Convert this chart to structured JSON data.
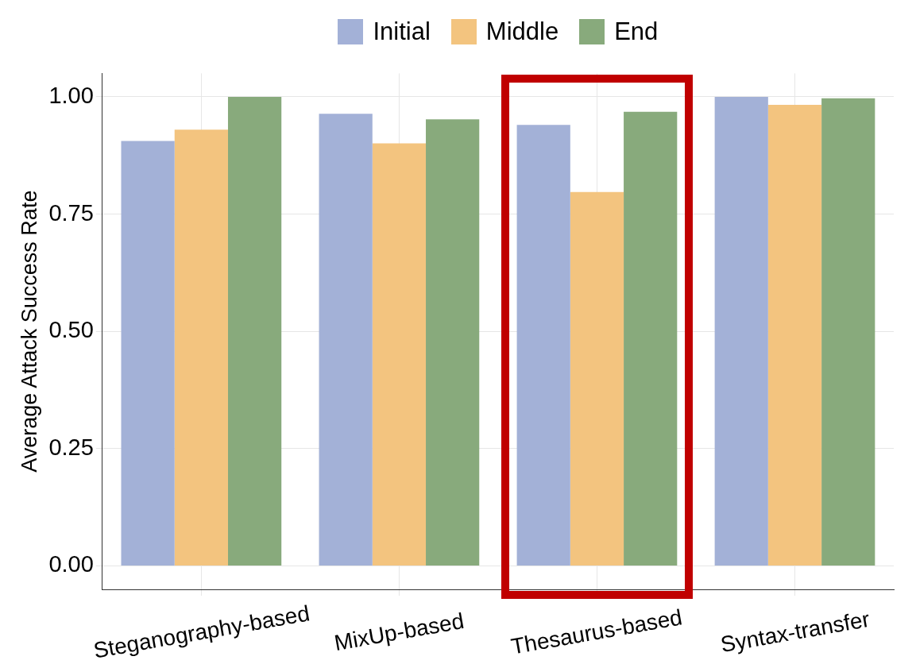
{
  "chart_data": {
    "type": "bar",
    "ylabel": "Average Attack Success Rate",
    "categories": [
      "Steganography-based",
      "MixUp-based",
      "Thesaurus-based",
      "Syntax-transfer"
    ],
    "series": [
      {
        "name": "Initial",
        "color": "#a3b1d7",
        "values": [
          0.906,
          0.964,
          0.94,
          1.0
        ]
      },
      {
        "name": "Middle",
        "color": "#f3c47f",
        "values": [
          0.93,
          0.901,
          0.797,
          0.983
        ]
      },
      {
        "name": "End",
        "color": "#88aa7c",
        "values": [
          1.0,
          0.952,
          0.968,
          0.997
        ]
      }
    ],
    "ylim": [
      -0.05,
      1.05
    ],
    "yticks": [
      {
        "value": 0,
        "label": "0.00"
      },
      {
        "value": 0.25,
        "label": "0.25"
      },
      {
        "value": 0.5,
        "label": "0.50"
      },
      {
        "value": 0.75,
        "label": "0.75"
      },
      {
        "value": 1,
        "label": "1.00"
      }
    ],
    "grid": true,
    "legend": "top"
  }
}
